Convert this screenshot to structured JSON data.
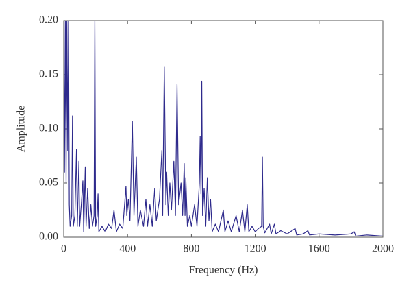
{
  "chart_data": {
    "type": "line",
    "xlabel": "Frequency (Hz)",
    "ylabel": "Amplitude",
    "x": [
      0,
      5,
      10,
      15,
      20,
      25,
      30,
      35,
      40,
      50,
      55,
      60,
      70,
      80,
      85,
      95,
      100,
      110,
      120,
      125,
      135,
      140,
      150,
      160,
      170,
      180,
      190,
      195,
      200,
      210,
      215,
      220,
      240,
      260,
      280,
      300,
      315,
      330,
      350,
      370,
      390,
      395,
      405,
      415,
      430,
      440,
      455,
      465,
      480,
      500,
      515,
      525,
      540,
      555,
      570,
      580,
      600,
      615,
      620,
      630,
      640,
      645,
      655,
      665,
      675,
      690,
      700,
      710,
      720,
      735,
      745,
      755,
      760,
      765,
      775,
      790,
      800,
      820,
      835,
      850,
      855,
      860,
      865,
      870,
      880,
      890,
      900,
      910,
      920,
      930,
      950,
      970,
      1000,
      1010,
      1030,
      1050,
      1080,
      1100,
      1120,
      1135,
      1150,
      1160,
      1180,
      1200,
      1220,
      1240,
      1245,
      1250,
      1260,
      1290,
      1300,
      1320,
      1330,
      1360,
      1400,
      1450,
      1460,
      1500,
      1530,
      1540,
      1600,
      1700,
      1800,
      1820,
      1830,
      1900,
      2000
    ],
    "series": [
      {
        "name": "Amplitude",
        "color": "#2e2a8c",
        "values": [
          0.2,
          0.06,
          0.2,
          0.05,
          0.2,
          0.08,
          0.2,
          0.03,
          0.01,
          0.02,
          0.112,
          0.01,
          0.02,
          0.081,
          0.01,
          0.07,
          0.01,
          0.03,
          0.052,
          0.005,
          0.065,
          0.01,
          0.045,
          0.008,
          0.03,
          0.01,
          0.02,
          0.2,
          0.01,
          0.02,
          0.04,
          0.005,
          0.01,
          0.005,
          0.012,
          0.008,
          0.025,
          0.005,
          0.012,
          0.008,
          0.047,
          0.02,
          0.035,
          0.015,
          0.107,
          0.02,
          0.074,
          0.01,
          0.025,
          0.01,
          0.035,
          0.01,
          0.03,
          0.01,
          0.045,
          0.015,
          0.035,
          0.08,
          0.02,
          0.157,
          0.03,
          0.06,
          0.02,
          0.05,
          0.025,
          0.07,
          0.02,
          0.141,
          0.03,
          0.05,
          0.02,
          0.068,
          0.02,
          0.055,
          0.01,
          0.02,
          0.01,
          0.03,
          0.01,
          0.05,
          0.093,
          0.04,
          0.144,
          0.02,
          0.045,
          0.01,
          0.055,
          0.015,
          0.035,
          0.005,
          0.012,
          0.005,
          0.025,
          0.005,
          0.015,
          0.005,
          0.02,
          0.005,
          0.025,
          0.005,
          0.03,
          0.005,
          0.01,
          0.005,
          0.008,
          0.01,
          0.074,
          0.01,
          0.004,
          0.012,
          0.003,
          0.012,
          0.003,
          0.006,
          0.003,
          0.008,
          0.002,
          0.003,
          0.006,
          0.002,
          0.003,
          0.002,
          0.003,
          0.005,
          0.001,
          0.002,
          0.001
        ]
      }
    ],
    "xlim": [
      0,
      2000
    ],
    "xticks": [
      0,
      400,
      800,
      1200,
      1600,
      2000
    ],
    "ylim": [
      0,
      0.2
    ],
    "yticks": [
      {
        "value": 0,
        "label": "0.00"
      },
      {
        "value": 0.05,
        "label": "0.05"
      },
      {
        "value": 0.1,
        "label": "0.10"
      },
      {
        "value": 0.15,
        "label": "0.15"
      },
      {
        "value": 0.2,
        "label": "0.20"
      }
    ]
  }
}
